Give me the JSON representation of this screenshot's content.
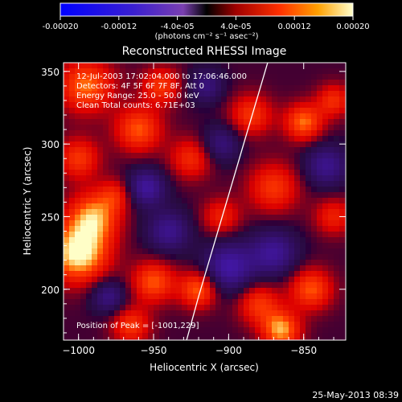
{
  "colorbar": {
    "ticks": [
      "-0.00020",
      "-0.00012",
      "-4.0e-05",
      "4.0e-05",
      "0.00012",
      "0.00020"
    ],
    "unit_label": "(photons cm⁻² s⁻¹ asec⁻²)",
    "range": [
      -0.0002,
      0.0002
    ]
  },
  "footer": {
    "timestamp": "25-May-2013 08:39"
  },
  "chart_data": {
    "type": "heatmap",
    "title": "Reconstructed RHESSI Image",
    "xlabel": "Heliocentric X (arcsec)",
    "ylabel": "Heliocentric Y (arcsec)",
    "xlim": [
      -1010,
      -822
    ],
    "ylim": [
      165,
      356
    ],
    "xticks": [
      -1000,
      -950,
      -900,
      -850
    ],
    "yticks": [
      200,
      250,
      300,
      350
    ],
    "xtick_labels": [
      "−1000",
      "−950",
      "−900",
      "−850"
    ],
    "ytick_labels": [
      "200",
      "250",
      "300",
      "350"
    ],
    "value_range": [
      -0.0002,
      0.0002
    ],
    "info_lines": [
      "12-Jul-2003 17:02:04.000 to 17:06:46.000",
      "Detectors: 4F 5F 6F 7F 8F, Att 0",
      "Energy Range: 25.0 - 50.0 keV",
      "Clean     Total counts: 6.71E+03"
    ],
    "peak_label": "Position of Peak = [-1001,229]",
    "peak": {
      "x": -1001,
      "y": 229
    },
    "limb_curve": [
      {
        "x": -928,
        "y": 165
      },
      {
        "x": -920,
        "y": 195
      },
      {
        "x": -910,
        "y": 230
      },
      {
        "x": -900,
        "y": 265
      },
      {
        "x": -890,
        "y": 300
      },
      {
        "x": -880,
        "y": 335
      },
      {
        "x": -874,
        "y": 356
      }
    ],
    "blobs": [
      {
        "x": -1000,
        "y": 225,
        "s": 14,
        "a": 1.0
      },
      {
        "x": -990,
        "y": 250,
        "s": 12,
        "a": 0.75
      },
      {
        "x": -1000,
        "y": 290,
        "s": 10,
        "a": 0.55
      },
      {
        "x": -995,
        "y": 340,
        "s": 13,
        "a": 0.7
      },
      {
        "x": -945,
        "y": 340,
        "s": 9,
        "a": 0.55
      },
      {
        "x": -960,
        "y": 310,
        "s": 11,
        "a": 0.65
      },
      {
        "x": -925,
        "y": 290,
        "s": 10,
        "a": 0.5
      },
      {
        "x": -885,
        "y": 320,
        "s": 10,
        "a": 0.55
      },
      {
        "x": -850,
        "y": 315,
        "s": 9,
        "a": 0.7
      },
      {
        "x": -830,
        "y": 330,
        "s": 8,
        "a": 0.5
      },
      {
        "x": -870,
        "y": 270,
        "s": 12,
        "a": 0.55
      },
      {
        "x": -905,
        "y": 250,
        "s": 9,
        "a": 0.45
      },
      {
        "x": -975,
        "y": 265,
        "s": 8,
        "a": 0.4
      },
      {
        "x": -950,
        "y": 205,
        "s": 10,
        "a": 0.65
      },
      {
        "x": -920,
        "y": 200,
        "s": 9,
        "a": 0.7
      },
      {
        "x": -880,
        "y": 190,
        "s": 10,
        "a": 0.55
      },
      {
        "x": -845,
        "y": 200,
        "s": 10,
        "a": 0.65
      },
      {
        "x": -865,
        "y": 172,
        "s": 9,
        "a": 0.8
      },
      {
        "x": -965,
        "y": 175,
        "s": 9,
        "a": 0.55
      },
      {
        "x": -830,
        "y": 250,
        "s": 9,
        "a": 0.45
      },
      {
        "x": -940,
        "y": 240,
        "s": 10,
        "a": -0.55
      },
      {
        "x": -955,
        "y": 270,
        "s": 9,
        "a": -0.65
      },
      {
        "x": -900,
        "y": 215,
        "s": 12,
        "a": -0.7
      },
      {
        "x": -870,
        "y": 225,
        "s": 11,
        "a": -0.6
      },
      {
        "x": -835,
        "y": 285,
        "s": 10,
        "a": -0.55
      },
      {
        "x": -905,
        "y": 300,
        "s": 9,
        "a": -0.45
      },
      {
        "x": -980,
        "y": 195,
        "s": 8,
        "a": -0.5
      },
      {
        "x": -915,
        "y": 340,
        "s": 8,
        "a": -0.45
      }
    ]
  }
}
